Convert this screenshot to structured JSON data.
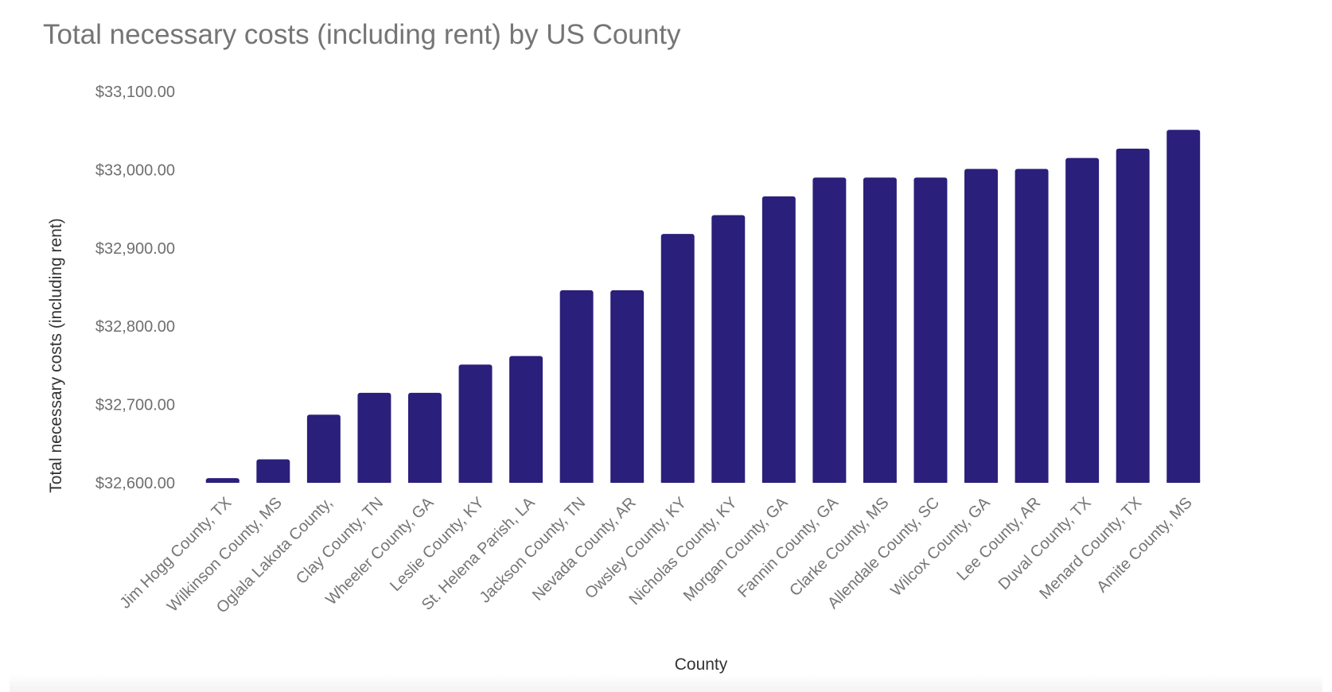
{
  "chart_data": {
    "type": "bar",
    "title": "Total necessary costs (including rent) by US County",
    "xlabel": "County",
    "ylabel": "Total necessary costs (including rent)",
    "ylim": [
      32600,
      33100
    ],
    "yticks": [
      32600,
      32700,
      32800,
      32900,
      33000,
      33100
    ],
    "ytick_labels": [
      "$32,600.00",
      "$32,700.00",
      "$32,800.00",
      "$32,900.00",
      "$33,000.00",
      "$33,100.00"
    ],
    "grid": false,
    "legend": "none",
    "bar_color": "#2a1f7a",
    "categories": [
      "Jim Hogg County, TX",
      "Wilkinson County, MS",
      "Oglala Lakota County,",
      "Clay County, TN",
      "Wheeler County, GA",
      "Leslie County, KY",
      "St. Helena Parish, LA",
      "Jackson County, TN",
      "Nevada County, AR",
      "Owsley County, KY",
      "Nicholas County, KY",
      "Morgan County, GA",
      "Fannin County, GA",
      "Clarke County, MS",
      "Allendale County, SC",
      "Wilcox County, GA",
      "Lee County, AR",
      "Duval County, TX",
      "Menard County, TX",
      "Amite County, MS"
    ],
    "values": [
      32606,
      32630,
      32687,
      32715,
      32715,
      32751,
      32762,
      32846,
      32846,
      32918,
      32942,
      32966,
      32990,
      32990,
      32990,
      33001,
      33001,
      33015,
      33027,
      33051
    ]
  }
}
